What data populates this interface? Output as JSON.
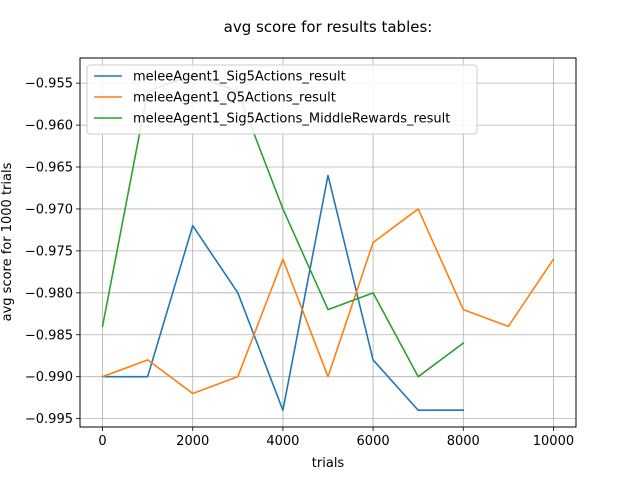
{
  "chart_data": {
    "type": "line",
    "title": "avg score for results tables:",
    "xlabel": "trials",
    "ylabel": "avg score for 1000 trials",
    "xlim": [
      -500,
      10500
    ],
    "ylim": [
      -0.996,
      -0.952
    ],
    "xticks": [
      0,
      2000,
      4000,
      6000,
      8000,
      10000
    ],
    "xtick_labels": [
      "0",
      "2000",
      "4000",
      "6000",
      "8000",
      "10000"
    ],
    "yticks": [
      -0.995,
      -0.99,
      -0.985,
      -0.98,
      -0.975,
      -0.97,
      -0.965,
      -0.96,
      -0.955
    ],
    "ytick_labels": [
      "−0.995",
      "−0.990",
      "−0.985",
      "−0.980",
      "−0.975",
      "−0.970",
      "−0.965",
      "−0.960",
      "−0.955"
    ],
    "grid": true,
    "legend_position": "top-left",
    "series": [
      {
        "name": "meleeAgent1_Sig5Actions_result",
        "color": "#1f77b4",
        "x": [
          0,
          1000,
          2000,
          3000,
          4000,
          5000,
          6000,
          7000,
          8000
        ],
        "y": [
          -0.99,
          -0.99,
          -0.972,
          -0.98,
          -0.994,
          -0.966,
          -0.988,
          -0.994,
          -0.994
        ]
      },
      {
        "name": "meleeAgent1_Q5Actions_result",
        "color": "#ff7f0e",
        "x": [
          0,
          1000,
          2000,
          3000,
          4000,
          5000,
          6000,
          7000,
          8000,
          9000,
          10000
        ],
        "y": [
          -0.99,
          -0.988,
          -0.992,
          -0.99,
          -0.976,
          -0.99,
          -0.974,
          -0.97,
          -0.982,
          -0.984,
          -0.976
        ]
      },
      {
        "name": "meleeAgent1_Sig5Actions_MiddleRewards_result",
        "color": "#2ca02c",
        "x": [
          0,
          1000,
          2000,
          3000,
          4000,
          5000,
          6000,
          7000,
          8000
        ],
        "y": [
          -0.984,
          -0.956,
          -0.954,
          -0.956,
          -0.97,
          -0.982,
          -0.98,
          -0.99,
          -0.986
        ]
      }
    ]
  }
}
